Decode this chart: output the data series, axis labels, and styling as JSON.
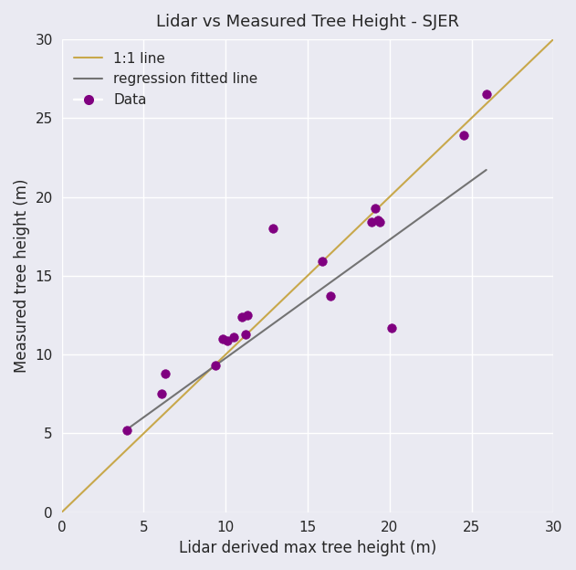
{
  "title": "Lidar vs Measured Tree Height - SJER",
  "xlabel": "Lidar derived max tree height (m)",
  "ylabel": "Measured tree height (m)",
  "xlim": [
    0,
    30
  ],
  "ylim": [
    0,
    30
  ],
  "xticks": [
    0,
    5,
    10,
    15,
    20,
    25,
    30
  ],
  "yticks": [
    0,
    5,
    10,
    15,
    20,
    25,
    30
  ],
  "background_color": "#eaeaf2",
  "scatter_color": "#800080",
  "one_to_one_color": "#c8a84b",
  "regression_color": "#737373",
  "x_data": [
    4.0,
    6.1,
    6.3,
    9.4,
    9.8,
    10.1,
    10.5,
    11.0,
    11.2,
    11.3,
    12.9,
    15.9,
    16.4,
    18.9,
    19.1,
    19.3,
    19.4,
    20.1,
    24.5,
    25.9
  ],
  "y_data": [
    5.2,
    7.5,
    8.8,
    9.3,
    11.0,
    10.9,
    11.1,
    12.4,
    11.3,
    12.5,
    18.0,
    15.9,
    13.7,
    18.4,
    19.3,
    18.5,
    18.4,
    11.7,
    23.9,
    26.5
  ],
  "reg_slope": 0.7506,
  "reg_intercept": 2.2686,
  "legend_labels": [
    "1:1 line",
    "regression fitted line",
    "Data"
  ],
  "title_fontsize": 13,
  "label_fontsize": 12,
  "tick_fontsize": 11,
  "legend_fontsize": 11,
  "scatter_size": 50,
  "line_width": 1.5,
  "grid_color": "#ffffff",
  "grid_linewidth": 1.0
}
